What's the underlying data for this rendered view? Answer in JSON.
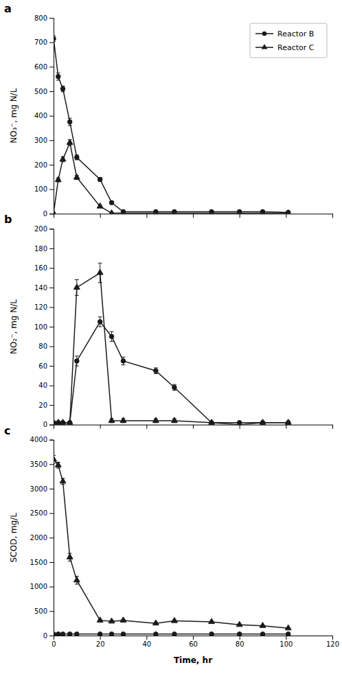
{
  "chart_data": [
    {
      "type": "line",
      "title": "a",
      "ylabel": "NO₃⁻, mg N/L",
      "xlim": [
        0,
        120
      ],
      "xticks": [
        0,
        20,
        40,
        60,
        80,
        100,
        120
      ],
      "ylim": [
        0,
        800
      ],
      "yticks": [
        0,
        100,
        200,
        300,
        400,
        500,
        600,
        700,
        800
      ],
      "tick_labels": "y",
      "legend": "upper right",
      "x": [
        0,
        2,
        4,
        7,
        10,
        20,
        25,
        30,
        44,
        52,
        68,
        80,
        90,
        101
      ],
      "series": [
        {
          "name": "Reactor B",
          "color": "#1a1a1a",
          "marker": "circle",
          "line_style": "solid",
          "values": [
            715,
            560,
            510,
            375,
            230,
            140,
            45,
            8,
            8,
            8,
            8,
            8,
            8,
            5
          ],
          "errors": [
            12,
            15,
            12,
            15,
            10,
            8,
            5,
            2,
            2,
            2,
            2,
            2,
            2,
            2
          ]
        },
        {
          "name": "Reactor C",
          "color": "#1a1a1a",
          "marker": "triangle",
          "line_style": "solid",
          "values": [
            2,
            138,
            222,
            290,
            148,
            30,
            2,
            2,
            2,
            2,
            2,
            2,
            2,
            2
          ],
          "errors": [
            2,
            8,
            10,
            12,
            8,
            5,
            2,
            2,
            2,
            2,
            2,
            2,
            2,
            2
          ]
        }
      ]
    },
    {
      "type": "line",
      "title": "b",
      "ylabel": "NO₂⁻, mg N/L",
      "xlim": [
        0,
        120
      ],
      "xticks": [
        0,
        20,
        40,
        60,
        80,
        100,
        120
      ],
      "ylim": [
        0,
        200
      ],
      "yticks": [
        0,
        20,
        40,
        60,
        80,
        100,
        120,
        140,
        160,
        180,
        200
      ],
      "tick_labels": "y",
      "x": [
        0,
        2,
        4,
        7,
        10,
        20,
        25,
        30,
        44,
        52,
        68,
        80,
        90,
        101
      ],
      "series": [
        {
          "name": "Reactor B",
          "color": "#1a1a1a",
          "marker": "circle",
          "line_style": "solid",
          "values": [
            2,
            2,
            2,
            2,
            65,
            105,
            90,
            65,
            55,
            38,
            2,
            2,
            2,
            2
          ],
          "errors": [
            1,
            1,
            1,
            1,
            5,
            5,
            5,
            4,
            3,
            3,
            1,
            1,
            1,
            1
          ]
        },
        {
          "name": "Reactor C",
          "color": "#1a1a1a",
          "marker": "triangle",
          "line_style": "solid",
          "values": [
            2,
            2,
            2,
            2,
            140,
            155,
            4,
            4,
            4,
            4,
            2,
            0,
            2,
            2
          ],
          "errors": [
            1,
            1,
            1,
            1,
            8,
            10,
            2,
            2,
            2,
            2,
            1,
            0,
            1,
            1
          ]
        }
      ]
    },
    {
      "type": "line",
      "title": "c",
      "ylabel": "SCOD, mg/L",
      "xlabel": "Time, hr",
      "xlim": [
        0,
        120
      ],
      "xticks": [
        0,
        20,
        40,
        60,
        80,
        100,
        120
      ],
      "ylim": [
        0,
        4000
      ],
      "yticks": [
        0,
        500,
        1000,
        1500,
        2000,
        2500,
        3000,
        3500,
        4000
      ],
      "x": [
        0,
        2,
        4,
        7,
        10,
        20,
        25,
        30,
        44,
        52,
        68,
        80,
        90,
        101
      ],
      "series": [
        {
          "name": "Reactor B",
          "color": "#1a1a1a",
          "marker": "circle",
          "line_style": "solid",
          "values": [
            30,
            30,
            30,
            30,
            30,
            30,
            30,
            30,
            30,
            30,
            30,
            30,
            30,
            30
          ],
          "errors": [
            3,
            3,
            3,
            3,
            3,
            3,
            3,
            3,
            3,
            3,
            3,
            3,
            3,
            3
          ]
        },
        {
          "name": "Reactor C",
          "color": "#1a1a1a",
          "marker": "triangle",
          "line_style": "solid",
          "values": [
            3600,
            3480,
            3150,
            1600,
            1130,
            310,
            290,
            310,
            250,
            300,
            280,
            220,
            200,
            150
          ],
          "errors": [
            80,
            60,
            60,
            80,
            80,
            25,
            20,
            20,
            20,
            20,
            15,
            15,
            10,
            10
          ]
        }
      ]
    }
  ]
}
